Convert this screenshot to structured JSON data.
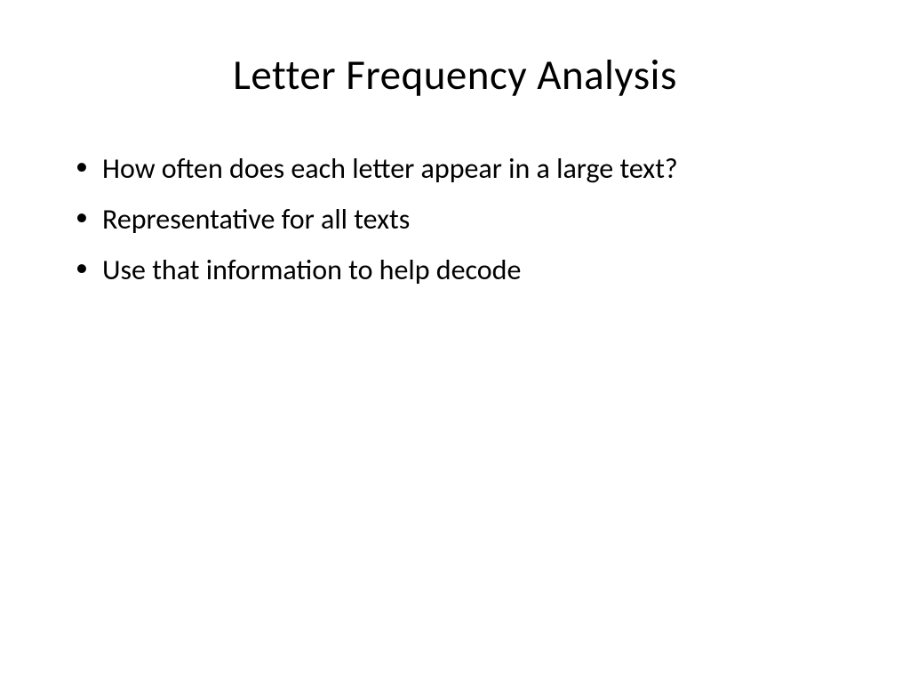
{
  "slide": {
    "title": "Letter Frequency Analysis",
    "bullets": [
      "How often does each letter appear in a large text?",
      "Representative for all texts",
      "Use that information to help decode"
    ],
    "styling": {
      "background_color": "#ffffff",
      "text_color": "#000000",
      "font_family": "Calibri",
      "title_fontsize": 47,
      "title_fontweight": 400,
      "body_fontsize": 32,
      "body_fontweight": 400,
      "bullet_marker": "•",
      "slide_width": 1024,
      "slide_height": 768
    }
  }
}
